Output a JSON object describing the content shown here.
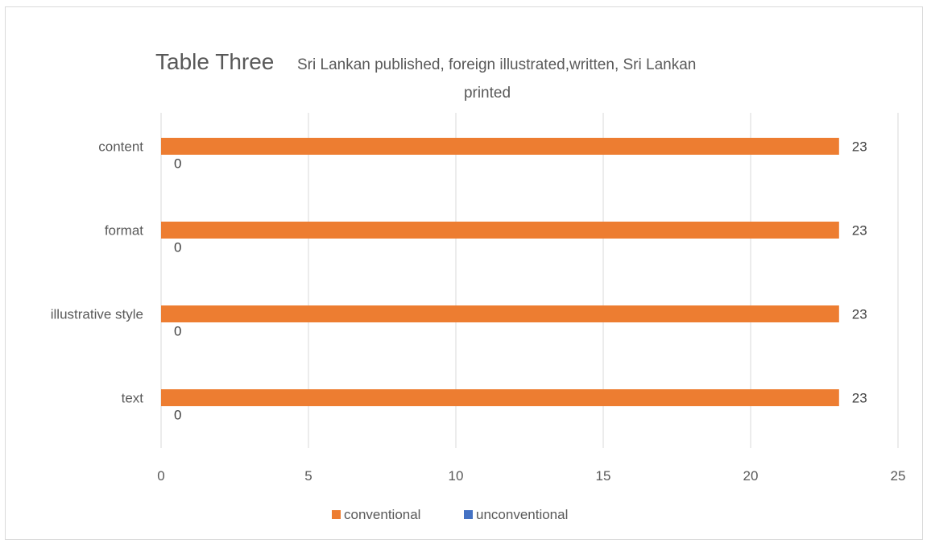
{
  "chart_data": {
    "type": "bar",
    "orientation": "horizontal",
    "title": "Table Three",
    "subtitle": "Sri Lankan published, foreign illustrated,written, Sri Lankan printed",
    "categories": [
      "content",
      "format",
      "illustrative style",
      "text"
    ],
    "series": [
      {
        "name": "conventional",
        "color": "#ED7D31",
        "values": [
          23,
          23,
          23,
          23
        ]
      },
      {
        "name": "unconventional",
        "color": "#4472C4",
        "values": [
          0,
          0,
          0,
          0
        ]
      }
    ],
    "xlim": [
      0,
      25
    ],
    "xticks": [
      "0",
      "5",
      "10",
      "15",
      "20",
      "25"
    ],
    "grid": "vertical",
    "legend": "bottom",
    "data_labels": true
  }
}
